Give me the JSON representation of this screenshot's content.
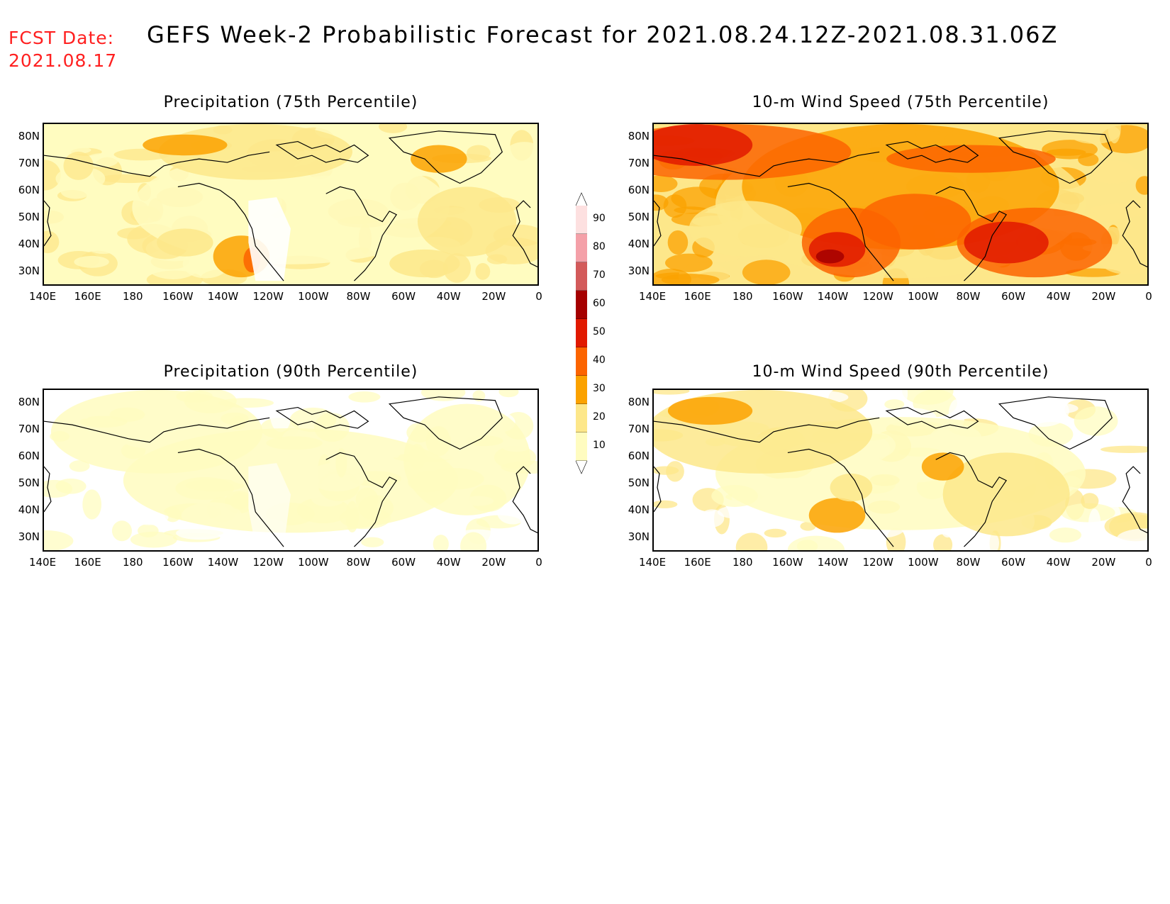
{
  "header": {
    "fcst_line1": "FCST Date:",
    "fcst_line2": "2021.08.17",
    "title": "GEFS Week-2 Probabilistic Forecast for 2021.08.24.12Z-2021.08.31.06Z"
  },
  "panels": [
    {
      "title": "Precipitation (75th Percentile)",
      "variable": "precip75"
    },
    {
      "title": "10-m Wind Speed (75th Percentile)",
      "variable": "wind75"
    },
    {
      "title": "Precipitation (90th Percentile)",
      "variable": "precip90"
    },
    {
      "title": "10-m Wind Speed (90th Percentile)",
      "variable": "wind90"
    }
  ],
  "lat_labels": [
    "80N",
    "70N",
    "60N",
    "50N",
    "40N",
    "30N"
  ],
  "lon_labels": [
    "140E",
    "160E",
    "180",
    "160W",
    "140W",
    "120W",
    "100W",
    "80W",
    "60W",
    "40W",
    "20W",
    "0"
  ],
  "colorbar": {
    "levels": [
      "10",
      "20",
      "30",
      "40",
      "50",
      "60",
      "70",
      "80",
      "90"
    ],
    "colors": [
      "#fffcc0",
      "#fde78a",
      "#fba200",
      "#fc6400",
      "#e11900",
      "#a50000",
      "#d35a5a",
      "#f4a0a8",
      "#fde0e0"
    ]
  }
}
